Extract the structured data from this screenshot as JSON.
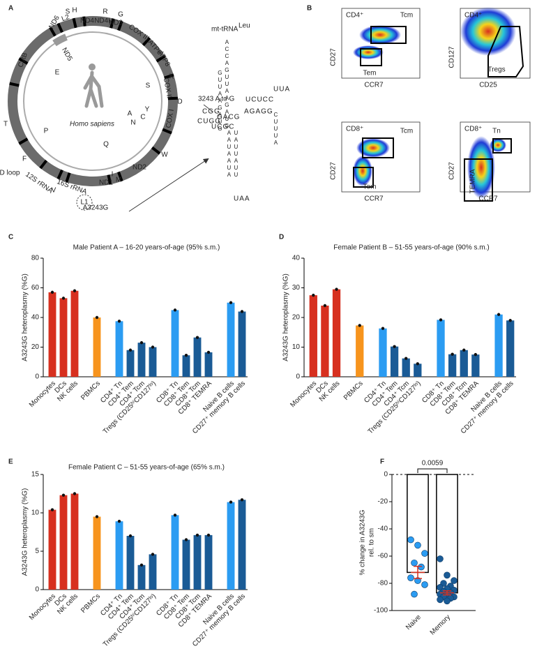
{
  "panel_labels": [
    "A",
    "B",
    "C",
    "D",
    "E",
    "F"
  ],
  "genome": {
    "species": "Homo sapiens",
    "mutation": "A3243G",
    "genes": [
      "ND6",
      "L2",
      "S",
      "H",
      "ND4",
      "ND4L",
      "R",
      "G",
      "ND3",
      "COX III",
      "ATP6",
      "ATP8",
      "K",
      "COX II",
      "D",
      "S",
      "COX I",
      "ND5",
      "E",
      "CytB",
      "T",
      "P",
      "D loop",
      "F",
      "12S rRNA",
      "V",
      "16S rRNA",
      "L1",
      "ND1",
      "I",
      "M",
      "ND2",
      "W",
      "Q",
      "A",
      "N",
      "C",
      "Y"
    ]
  },
  "trna": {
    "title": "mt-tRNA",
    "title_superscript": "Leu",
    "mutation": "3243 A to G",
    "segments": [
      "ACCAGUUAAGAUG",
      "GUUAAGAUG",
      "AGAGG",
      "UCUCC",
      "UUA",
      "CUUUA",
      "GACG",
      "UCGC",
      "CGG",
      "UAUUAUU",
      "AAUAAUA",
      "UAA",
      "CUGG"
    ]
  },
  "flow": {
    "plots": [
      {
        "population": "CD4⁺",
        "x_label": "CCR7",
        "y_label": "CD27",
        "gates": [
          "Tcm",
          "Tem"
        ]
      },
      {
        "population": "CD4⁺",
        "x_label": "CD25",
        "y_label": "CD127",
        "gates": [
          "Tregs"
        ]
      },
      {
        "population": "CD8⁺",
        "x_label": "CCR7",
        "y_label": "CD27",
        "gates": [
          "Tcm",
          "Tem"
        ]
      },
      {
        "population": "CD8⁺",
        "x_label": "CCR7",
        "y_label": "CD27",
        "gates": [
          "Tn",
          "TEMRA"
        ]
      }
    ]
  },
  "chart_data": [
    {
      "type": "bar",
      "title": "Male Patient A – 16-20 years-of-age (95% s.m.)",
      "y_label": "A3243G heteroplasmy (%G)",
      "categories": [
        "Monocytes",
        "DCs",
        "NK cells",
        null,
        "PBMCs",
        null,
        "CD4⁺ Tn",
        "CD4⁺ Tem",
        "CD4⁺ Tcm",
        "Tregs (CD25ʰⁱCD127ˡᵒ)",
        null,
        "CD8⁺ Tn",
        "CD8⁺ Tem",
        "CD8⁺ Tcm",
        "CD8⁺ TEMRA",
        null,
        "Naive B cells",
        "CD27⁺ memory B cells"
      ],
      "values": [
        57,
        53,
        58,
        null,
        40,
        null,
        37.5,
        18,
        23,
        20,
        null,
        45,
        14.5,
        26.5,
        16.5,
        null,
        50,
        44
      ],
      "colors": [
        "#d7301f",
        "#d7301f",
        "#d7301f",
        null,
        "#f7941d",
        null,
        "#2b9cf2",
        "#1a5b96",
        "#1a5b96",
        "#1a5b96",
        null,
        "#2b9cf2",
        "#1a5b96",
        "#1a5b96",
        "#1a5b96",
        null,
        "#2b9cf2",
        "#1a5b96"
      ],
      "ylim": [
        0,
        80
      ],
      "yticks": [
        0,
        20,
        40,
        60,
        80
      ]
    },
    {
      "type": "bar",
      "title": "Female Patient B – 51-55 years-of-age (90% s.m.)",
      "y_label": "A3243G heteroplasmy (%G)",
      "categories": [
        "Monocytes",
        "DCs",
        "NK cells",
        null,
        "PBMCs",
        null,
        "CD4⁺ Tn",
        "CD4⁺ Tem",
        "CD4⁺ Tcm",
        "Tregs (CD25ʰⁱCD127ˡᵒ)",
        null,
        "CD8⁺ Tn",
        "CD8⁺ Tem",
        "CD8⁺ Tcm",
        "CD8⁺ TEMRA",
        null,
        "Naive B cells",
        "CD27⁺ memory B cells"
      ],
      "values": [
        27.5,
        24,
        29.5,
        null,
        17.3,
        null,
        16.3,
        10.2,
        6.2,
        4.4,
        null,
        19.2,
        7.6,
        9,
        7.5,
        null,
        21,
        19
      ],
      "colors": [
        "#d7301f",
        "#d7301f",
        "#d7301f",
        null,
        "#f7941d",
        null,
        "#2b9cf2",
        "#1a5b96",
        "#1a5b96",
        "#1a5b96",
        null,
        "#2b9cf2",
        "#1a5b96",
        "#1a5b96",
        "#1a5b96",
        null,
        "#2b9cf2",
        "#1a5b96"
      ],
      "ylim": [
        0,
        40
      ],
      "yticks": [
        0,
        10,
        20,
        30,
        40
      ]
    },
    {
      "type": "bar",
      "title": "Female Patient C – 51-55 years-of-age (65% s.m.)",
      "y_label": "A3243G heteroplasmy (%G)",
      "categories": [
        "Monocytes",
        "DCs",
        "NK cells",
        null,
        "PBMCs",
        null,
        "CD4⁺ Tn",
        "CD4⁺ Tem",
        "CD4⁺ Tcm",
        "Tregs (CD25ʰⁱCD127ˡᵒ)",
        null,
        "CD8⁺ Tn",
        "CD8⁺ Tem",
        "CD8⁺ Tcm",
        "CD8⁺ TEMRA",
        null,
        "Naive B cells",
        "CD27⁺ memory B cells"
      ],
      "values": [
        10.4,
        12.3,
        12.5,
        null,
        9.5,
        null,
        8.9,
        7,
        3.2,
        4.6,
        null,
        9.7,
        6.5,
        7.1,
        7.1,
        null,
        11.4,
        11.7
      ],
      "colors": [
        "#d7301f",
        "#d7301f",
        "#d7301f",
        null,
        "#f7941d",
        null,
        "#2b9cf2",
        "#1a5b96",
        "#1a5b96",
        "#1a5b96",
        null,
        "#2b9cf2",
        "#1a5b96",
        "#1a5b96",
        "#1a5b96",
        null,
        "#2b9cf2",
        "#1a5b96"
      ],
      "ylim": [
        0,
        15
      ],
      "yticks": [
        0,
        5,
        10,
        15
      ]
    },
    {
      "type": "bar_scatter",
      "y_label": [
        "% change in A3243G",
        "rel. to sm"
      ],
      "categories": [
        "Naive",
        "Memory"
      ],
      "values": [
        -72,
        -87
      ],
      "errors": [
        4.5,
        1.5
      ],
      "points": [
        [
          -48,
          -52,
          -58,
          -65,
          -68,
          -76,
          -78,
          -81,
          -88
        ],
        [
          -62,
          -74,
          -78,
          -80,
          -82,
          -83,
          -84,
          -85,
          -86,
          -87,
          -88,
          -88,
          -90,
          -90,
          -91,
          -92,
          -93
        ]
      ],
      "colors": [
        "#2b9cf2",
        "#1a5b96"
      ],
      "error_color": "#d7301f",
      "annotation": "0.0059",
      "ylim": [
        -100,
        0
      ],
      "yticks": [
        -100,
        -80,
        -60,
        -40,
        -20,
        0
      ]
    }
  ]
}
